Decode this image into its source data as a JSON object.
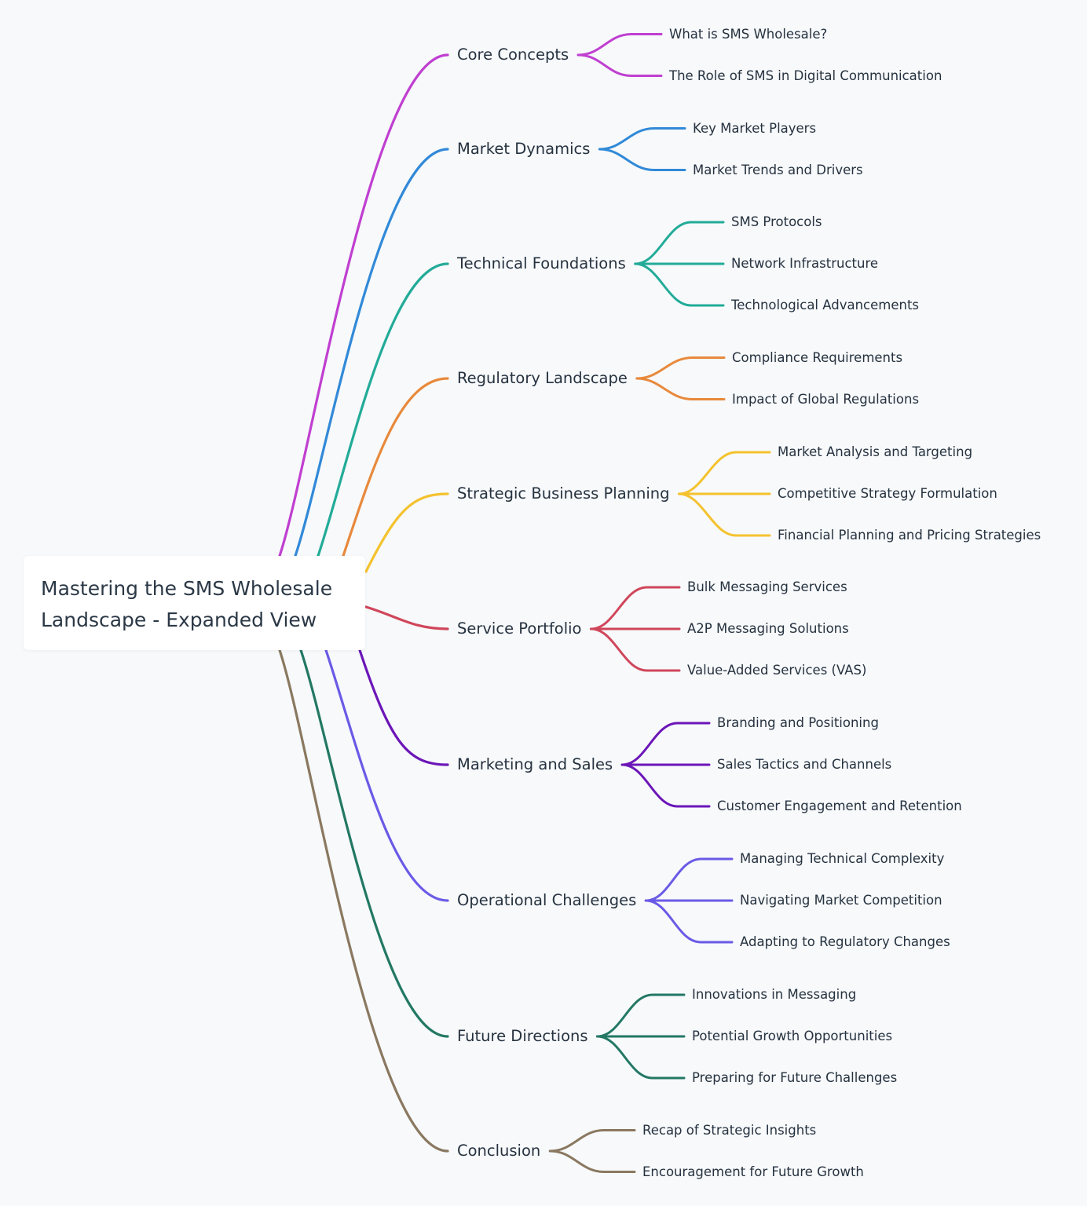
{
  "root": {
    "title_line1": "Mastering the SMS Wholesale",
    "title_line2": "Landscape - Expanded View"
  },
  "branches": [
    {
      "label": "Core Concepts",
      "color": "#c03fd0",
      "children": [
        "What is SMS Wholesale?",
        "The Role of SMS in Digital Communication"
      ]
    },
    {
      "label": "Market Dynamics",
      "color": "#3189d8",
      "children": [
        "Key Market Players",
        "Market Trends and Drivers"
      ]
    },
    {
      "label": "Technical Foundations",
      "color": "#22ab98",
      "children": [
        "SMS Protocols",
        "Network Infrastructure",
        "Technological Advancements"
      ]
    },
    {
      "label": "Regulatory Landscape",
      "color": "#e8893c",
      "children": [
        "Compliance Requirements",
        "Impact of Global Regulations"
      ]
    },
    {
      "label": "Strategic Business Planning",
      "color": "#f4c22e",
      "children": [
        "Market Analysis and Targeting",
        "Competitive Strategy Formulation",
        "Financial Planning and Pricing Strategies"
      ]
    },
    {
      "label": "Service Portfolio",
      "color": "#d0465a",
      "children": [
        "Bulk Messaging Services",
        "A2P Messaging Solutions",
        "Value-Added Services (VAS)"
      ]
    },
    {
      "label": "Marketing and Sales",
      "color": "#6c16b8",
      "children": [
        "Branding and Positioning",
        "Sales Tactics and Channels",
        "Customer Engagement and Retention"
      ]
    },
    {
      "label": "Operational Challenges",
      "color": "#6a5ae6",
      "children": [
        "Managing Technical Complexity",
        "Navigating Market Competition",
        "Adapting to Regulatory Changes"
      ]
    },
    {
      "label": "Future Directions",
      "color": "#237864",
      "children": [
        "Innovations in Messaging",
        "Potential Growth Opportunities",
        "Preparing for Future Challenges"
      ]
    },
    {
      "label": "Conclusion",
      "color": "#8a7860",
      "children": [
        "Recap of Strategic Insights",
        "Encouragement for Future Growth"
      ]
    }
  ]
}
